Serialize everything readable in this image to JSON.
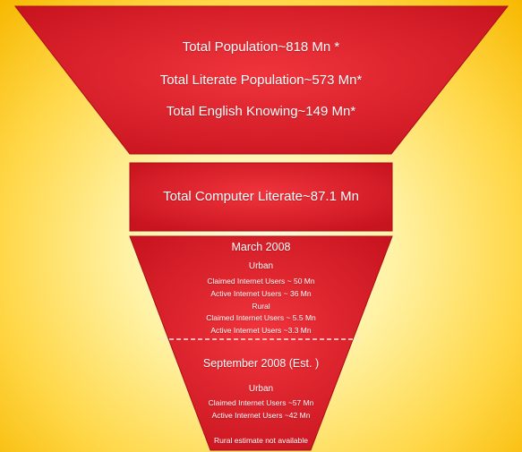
{
  "colors": {
    "funnel_red": "#d81c2a",
    "funnel_highlight": "#f0343c",
    "funnel_edge": "#a80d18",
    "background_center": "#fffbe0",
    "background_edge": "#f7b800",
    "text": "#ffffff"
  },
  "top_section": {
    "line1": "Total Population~818 Mn *",
    "line2": "Total Literate Population~573 Mn*",
    "line3": "Total English Knowing~149 Mn*"
  },
  "middle_section": {
    "line1": "Total Computer Literate~87.1 Mn"
  },
  "bottom_section": {
    "march": {
      "heading": "March 2008",
      "urban_label": "Urban",
      "urban_claimed": "Claimed Internet Users ~ 50 Mn",
      "urban_active": "Active Internet Users ~ 36 Mn",
      "rural_label": "Rural",
      "rural_claimed": "Claimed Internet Users ~ 5.5 Mn",
      "rural_active": "Active Internet Users  ~3.3 Mn"
    },
    "september": {
      "heading": "September  2008 (Est. )",
      "urban_label": "Urban",
      "urban_claimed": "Claimed Internet Users ~57 Mn",
      "urban_active": "Active Internet Users ~42 Mn",
      "rural_note": "Rural estimate not available"
    }
  }
}
